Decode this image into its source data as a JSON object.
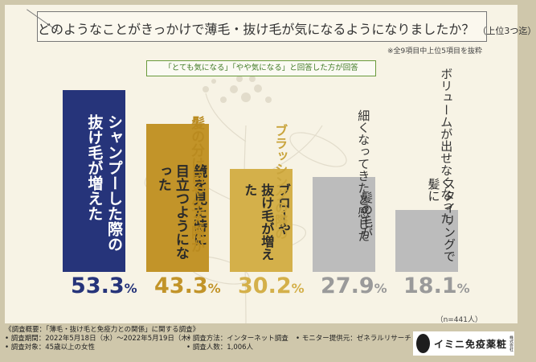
{
  "title": "どのようなことがきっかけで薄毛・抜け毛が気になるようになりましたか？",
  "subtitle": "（上位3つ迄）",
  "note": "※全9項目中上位5項目を抜粋",
  "legend": "「とても気になる」「やや気になる」と回答した方が回答",
  "sample_size": "（n=441人）",
  "colors": {
    "navy": "#26347a",
    "gold1": "#c29429",
    "gold2": "#d4b04a",
    "gray": "#bcbcbc",
    "bg": "#f7f3e5",
    "frame": "#cfc7ab"
  },
  "chart_data": {
    "type": "bar",
    "categories": [
      "シャンプーした際の抜け毛が増えた",
      "鏡を見た時に髪の分け目や生え際が目立つようになった",
      "ブラッシングの際の抜け毛が増えた",
      "髪の毛が細くなってきたと感じた",
      "スタイリングで髪にボリュームが出せなくなった"
    ],
    "values": [
      53.3,
      43.3,
      30.2,
      27.9,
      18.1
    ],
    "unit": "%",
    "bars": [
      {
        "value": 53.3,
        "lines": [
          "シャンプーした際の",
          "抜け毛が増えた"
        ],
        "above": [],
        "pct_main": "53.3",
        "pct_unit": "%"
      },
      {
        "value": 43.3,
        "lines": [
          "鏡を見た時に",
          "目立つようになった"
        ],
        "above": [
          "髪の分け目や生え際が"
        ],
        "pct_main": "43.3",
        "pct_unit": "%"
      },
      {
        "value": 30.2,
        "lines": [
          "ブローや",
          "抜け毛が増えた"
        ],
        "above": [
          "ブラッシングの際の"
        ],
        "pct_main": "30.2",
        "pct_unit": "%"
      },
      {
        "value": 27.9,
        "lines": [
          "髪の毛が"
        ],
        "above": [
          "細くなってきたと感じた"
        ],
        "pct_main": "27.9",
        "pct_unit": "%"
      },
      {
        "value": 18.1,
        "lines": [
          "スタイリングで髪に"
        ],
        "above": [
          "ボリュームが出せなくなった"
        ],
        "pct_main": "18.1",
        "pct_unit": "%"
      }
    ]
  },
  "footer": {
    "overview": "《調査概要：「薄毛・抜け毛と免疫力との関係」に関する調査》",
    "period": "• 調査期間：2022年5月18日（水）～2022年5月19日（木）",
    "method": "• 調査方法：インターネット調査",
    "provider": "• モニター提供元：ゼネラルリサーチ",
    "target": "• 調査対象：45歳以上の女性",
    "count": "• 調査人数：1,006人"
  },
  "logo": {
    "text": "イミニ免疫薬粧",
    "small": "株式会社"
  }
}
